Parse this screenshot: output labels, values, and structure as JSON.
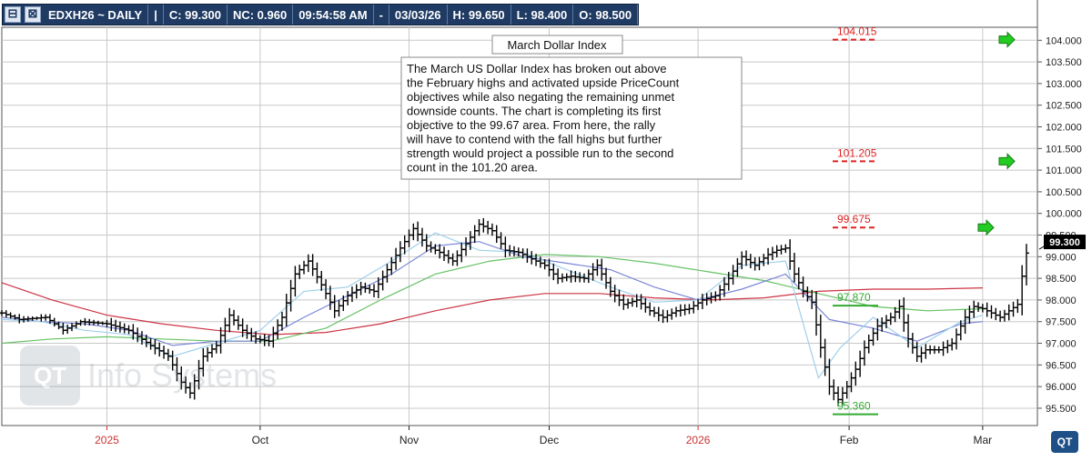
{
  "quote_bar": {
    "symbol": "EDXH26 ~ DAILY",
    "sep": "|",
    "close": "C: 99.300",
    "nc": "NC: 0.960",
    "time": "09:54:58 AM",
    "dash": "-",
    "date": "03/03/26",
    "high": "H: 99.650",
    "low": "L: 98.400",
    "open": "O: 98.500"
  },
  "watermark": {
    "text": "Info Systems",
    "icon": "QT"
  },
  "corner_logo": "QT",
  "colors": {
    "sma_red": "#cc3344",
    "sma_green": "#66c266",
    "sma_blue": "#7a87d8",
    "sma_lightblue": "#9fd0ec",
    "target_red": "#dd2222",
    "target_green": "#33aa33",
    "arrow_green": "#22cc22",
    "quote_bar_bg": "#1f3a63"
  },
  "chart_data": {
    "type": "ohlc",
    "title": "March Dollar Index",
    "annotation": "The March US Dollar Index has broken out above the February highs and activated upside PriceCount objectives while also negating the remaining unmet downside counts.  The chart is completing its first objective to the 99.67 area.  From here, the rally will have to contend with the fall highs but further strength would project a possible run to the second count in the 101.20 area.",
    "annotation_lines": [
      "The March US Dollar Index has broken out above",
      "the February highs and activated upside PriceCount",
      "objectives while also negating the remaining unmet",
      "downside counts.  The chart is completing its first",
      "objective to the 99.67 area.  From here, the rally",
      "will have to contend with the fall highs but further",
      "strength would project a possible run to the second",
      "count in the 101.20 area."
    ],
    "ylim": [
      95.1,
      104.3
    ],
    "y_ticks": [
      "95.500",
      "96.000",
      "96.500",
      "97.000",
      "97.500",
      "98.000",
      "98.500",
      "99.000",
      "99.500",
      "100.000",
      "100.500",
      "101.000",
      "101.500",
      "102.000",
      "102.500",
      "103.000",
      "103.500",
      "104.000"
    ],
    "x_axis": [
      {
        "label": "2025",
        "bar": 0,
        "color": "#cc3333"
      },
      {
        "label": "Oct",
        "bar": 70,
        "color": "#222222"
      },
      {
        "label": "Nov",
        "bar": 138,
        "color": "#222222"
      },
      {
        "label": "Dec",
        "bar": 202,
        "color": "#222222"
      },
      {
        "label": "2026",
        "bar": 270,
        "color": "#cc3333"
      },
      {
        "label": "Feb",
        "bar": 339,
        "color": "#222222"
      },
      {
        "label": "Mar",
        "bar": 400,
        "color": "#222222"
      }
    ],
    "x_range": [
      -48,
      425
    ],
    "last_price": "99.300",
    "price_targets": [
      {
        "label": "104.015",
        "value": 104.015,
        "color": "#dd2222",
        "arrow": true
      },
      {
        "label": "101.205",
        "value": 101.205,
        "color": "#dd2222",
        "arrow": true
      },
      {
        "label": "99.675",
        "value": 99.675,
        "color": "#dd2222",
        "arrow": true
      },
      {
        "label": "97.870",
        "value": 97.87,
        "color": "#33aa33",
        "arrow": false
      },
      {
        "label": "95.360",
        "value": 95.36,
        "color": "#33aa33",
        "arrow": false
      }
    ],
    "moving_averages": [
      {
        "color": "#cc3344",
        "points": [
          [
            -48,
            98.4
          ],
          [
            -25,
            98.0
          ],
          [
            0,
            97.65
          ],
          [
            25,
            97.45
          ],
          [
            50,
            97.3
          ],
          [
            75,
            97.2
          ],
          [
            100,
            97.25
          ],
          [
            125,
            97.45
          ],
          [
            150,
            97.75
          ],
          [
            175,
            98.0
          ],
          [
            200,
            98.15
          ],
          [
            225,
            98.15
          ],
          [
            250,
            98.05
          ],
          [
            275,
            98.0
          ],
          [
            300,
            98.05
          ],
          [
            325,
            98.2
          ],
          [
            350,
            98.25
          ],
          [
            375,
            98.25
          ],
          [
            400,
            98.28
          ]
        ]
      },
      {
        "color": "#66c266",
        "points": [
          [
            -48,
            97.0
          ],
          [
            -25,
            97.1
          ],
          [
            0,
            97.15
          ],
          [
            25,
            97.1
          ],
          [
            50,
            97.05
          ],
          [
            75,
            97.05
          ],
          [
            100,
            97.35
          ],
          [
            125,
            98.0
          ],
          [
            150,
            98.6
          ],
          [
            175,
            98.9
          ],
          [
            200,
            99.05
          ],
          [
            225,
            99.0
          ],
          [
            250,
            98.85
          ],
          [
            275,
            98.65
          ],
          [
            300,
            98.45
          ],
          [
            325,
            98.15
          ],
          [
            350,
            97.85
          ],
          [
            375,
            97.75
          ],
          [
            400,
            97.8
          ]
        ]
      },
      {
        "color": "#7a87d8",
        "points": [
          [
            -48,
            97.6
          ],
          [
            -30,
            97.5
          ],
          [
            -10,
            97.45
          ],
          [
            10,
            97.3
          ],
          [
            30,
            96.95
          ],
          [
            50,
            97.05
          ],
          [
            70,
            97.05
          ],
          [
            90,
            97.6
          ],
          [
            110,
            98.1
          ],
          [
            130,
            98.6
          ],
          [
            150,
            99.25
          ],
          [
            170,
            99.35
          ],
          [
            190,
            99.0
          ],
          [
            210,
            98.85
          ],
          [
            230,
            98.7
          ],
          [
            250,
            98.3
          ],
          [
            270,
            98.0
          ],
          [
            290,
            98.25
          ],
          [
            310,
            98.6
          ],
          [
            330,
            97.55
          ],
          [
            350,
            97.35
          ],
          [
            370,
            97.05
          ],
          [
            390,
            97.45
          ],
          [
            400,
            97.5
          ]
        ]
      },
      {
        "color": "#9fd0ec",
        "points": [
          [
            -48,
            97.55
          ],
          [
            -30,
            97.5
          ],
          [
            -10,
            97.3
          ],
          [
            10,
            97.2
          ],
          [
            30,
            96.7
          ],
          [
            50,
            97.0
          ],
          [
            70,
            97.3
          ],
          [
            90,
            98.2
          ],
          [
            110,
            98.3
          ],
          [
            130,
            98.9
          ],
          [
            150,
            99.55
          ],
          [
            170,
            99.15
          ],
          [
            190,
            99.1
          ],
          [
            210,
            98.7
          ],
          [
            230,
            98.3
          ],
          [
            250,
            97.95
          ],
          [
            270,
            98.0
          ],
          [
            290,
            98.8
          ],
          [
            310,
            98.9
          ],
          [
            325,
            96.2
          ],
          [
            335,
            96.9
          ],
          [
            350,
            97.6
          ],
          [
            370,
            96.9
          ],
          [
            390,
            97.5
          ],
          [
            400,
            97.65
          ]
        ]
      }
    ],
    "series": [
      {
        "name": "EDXH26",
        "ohlc_anchors": [
          [
            -48,
            97.7
          ],
          [
            -40,
            97.55
          ],
          [
            -28,
            97.6
          ],
          [
            -20,
            97.3
          ],
          [
            -12,
            97.5
          ],
          [
            0,
            97.45
          ],
          [
            10,
            97.3
          ],
          [
            20,
            96.95
          ],
          [
            28,
            96.7
          ],
          [
            34,
            96.1
          ],
          [
            38,
            95.85
          ],
          [
            44,
            96.7
          ],
          [
            50,
            96.95
          ],
          [
            56,
            97.65
          ],
          [
            62,
            97.3
          ],
          [
            68,
            97.1
          ],
          [
            74,
            97.05
          ],
          [
            80,
            97.6
          ],
          [
            86,
            98.6
          ],
          [
            92,
            98.9
          ],
          [
            98,
            98.35
          ],
          [
            104,
            97.75
          ],
          [
            110,
            98.1
          ],
          [
            116,
            98.3
          ],
          [
            122,
            98.2
          ],
          [
            128,
            98.7
          ],
          [
            134,
            99.2
          ],
          [
            140,
            99.65
          ],
          [
            146,
            99.25
          ],
          [
            152,
            99.1
          ],
          [
            158,
            98.9
          ],
          [
            164,
            99.3
          ],
          [
            170,
            99.75
          ],
          [
            176,
            99.6
          ],
          [
            182,
            99.15
          ],
          [
            188,
            99.1
          ],
          [
            194,
            98.95
          ],
          [
            200,
            98.8
          ],
          [
            206,
            98.5
          ],
          [
            212,
            98.55
          ],
          [
            218,
            98.5
          ],
          [
            224,
            98.8
          ],
          [
            230,
            98.2
          ],
          [
            236,
            97.9
          ],
          [
            242,
            98.0
          ],
          [
            248,
            97.75
          ],
          [
            254,
            97.6
          ],
          [
            260,
            97.75
          ],
          [
            266,
            97.8
          ],
          [
            272,
            98.0
          ],
          [
            278,
            98.1
          ],
          [
            284,
            98.5
          ],
          [
            290,
            99.0
          ],
          [
            296,
            98.8
          ],
          [
            302,
            99.05
          ],
          [
            306,
            99.15
          ],
          [
            310,
            99.2
          ],
          [
            314,
            98.6
          ],
          [
            318,
            98.2
          ],
          [
            322,
            97.95
          ],
          [
            326,
            96.9
          ],
          [
            330,
            96.0
          ],
          [
            334,
            95.7
          ],
          [
            338,
            96.0
          ],
          [
            342,
            96.4
          ],
          [
            346,
            96.9
          ],
          [
            352,
            97.4
          ],
          [
            358,
            97.6
          ],
          [
            362,
            97.85
          ],
          [
            366,
            97.1
          ],
          [
            370,
            96.7
          ],
          [
            374,
            96.85
          ],
          [
            380,
            96.85
          ],
          [
            386,
            97.0
          ],
          [
            392,
            97.6
          ],
          [
            396,
            97.85
          ],
          [
            400,
            97.8
          ],
          [
            404,
            97.7
          ],
          [
            408,
            97.6
          ],
          [
            412,
            97.75
          ],
          [
            416,
            97.9
          ],
          [
            418,
            98.55
          ],
          [
            421,
            99.35
          ]
        ]
      }
    ]
  }
}
